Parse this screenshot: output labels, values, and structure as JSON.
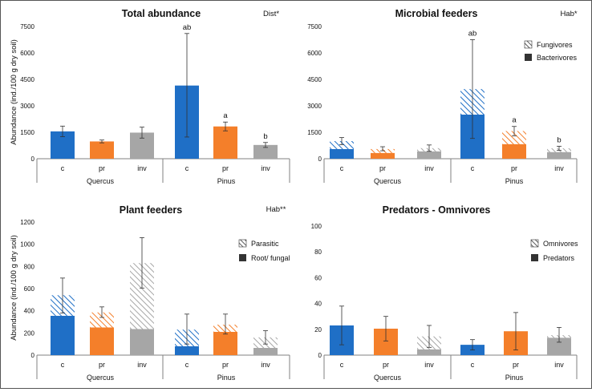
{
  "colors": {
    "quercus_c": "#1f6fc6",
    "pr": "#f47f2a",
    "inv": "#a6a6a6",
    "axis": "#808080",
    "gridline": "#d9d9d9",
    "text": "#111111"
  },
  "y_axis_label": "Abundance (ind./100 g dry soil)",
  "chart_data": [
    {
      "type": "bar",
      "title": "Total abundance",
      "significance": "Dist*",
      "ylim": [
        0,
        7500
      ],
      "yticks": [
        "0",
        "1500",
        "3000",
        "4500",
        "6000",
        "7500"
      ],
      "ytick_values": [
        0,
        1500,
        3000,
        4500,
        6000,
        7500
      ],
      "show_ylabel": true,
      "groups": [
        "Quercus",
        "Pinus"
      ],
      "categories": [
        "c",
        "pr",
        "inv",
        "c",
        "pr",
        "inv"
      ],
      "legend": [],
      "bars": [
        {
          "group": "Quercus",
          "category": "c",
          "bottom": 1550,
          "top": 0,
          "err_low": 1250,
          "err_high": 1850,
          "letter": ""
        },
        {
          "group": "Quercus",
          "category": "pr",
          "bottom": 980,
          "top": 0,
          "err_low": 900,
          "err_high": 1060,
          "letter": ""
        },
        {
          "group": "Quercus",
          "category": "inv",
          "bottom": 1480,
          "top": 0,
          "err_low": 1170,
          "err_high": 1790,
          "letter": ""
        },
        {
          "group": "Pinus",
          "category": "c",
          "bottom": 4150,
          "top": 0,
          "err_low": 1230,
          "err_high": 7100,
          "letter": "ab"
        },
        {
          "group": "Pinus",
          "category": "pr",
          "bottom": 1830,
          "top": 0,
          "err_low": 1580,
          "err_high": 2080,
          "letter": "a"
        },
        {
          "group": "Pinus",
          "category": "inv",
          "bottom": 780,
          "top": 0,
          "err_low": 640,
          "err_high": 920,
          "letter": "b"
        }
      ]
    },
    {
      "type": "bar",
      "title": "Microbial feeders",
      "significance": "Hab*",
      "ylim": [
        0,
        7500
      ],
      "yticks": [
        "0",
        "1500",
        "3000",
        "4500",
        "6000",
        "7500"
      ],
      "ytick_values": [
        0,
        1500,
        3000,
        4500,
        6000,
        7500
      ],
      "show_ylabel": false,
      "groups": [
        "Quercus",
        "Pinus"
      ],
      "categories": [
        "c",
        "pr",
        "inv",
        "c",
        "pr",
        "inv"
      ],
      "legend": [
        "Fungivores",
        "Bacterivores"
      ],
      "bars": [
        {
          "group": "Quercus",
          "category": "c",
          "bottom": 550,
          "top": 450,
          "err_low": 800,
          "err_high": 1200,
          "letter": ""
        },
        {
          "group": "Quercus",
          "category": "pr",
          "bottom": 330,
          "top": 220,
          "err_low": 450,
          "err_high": 680,
          "letter": ""
        },
        {
          "group": "Quercus",
          "category": "inv",
          "bottom": 420,
          "top": 180,
          "err_low": 420,
          "err_high": 780,
          "letter": ""
        },
        {
          "group": "Pinus",
          "category": "c",
          "bottom": 2500,
          "top": 1450,
          "err_low": 1150,
          "err_high": 6750,
          "letter": "ab"
        },
        {
          "group": "Pinus",
          "category": "pr",
          "bottom": 830,
          "top": 740,
          "err_low": 1300,
          "err_high": 1830,
          "letter": "a"
        },
        {
          "group": "Pinus",
          "category": "inv",
          "bottom": 380,
          "top": 210,
          "err_low": 470,
          "err_high": 710,
          "letter": "b"
        }
      ]
    },
    {
      "type": "bar",
      "title": "Plant feeders",
      "significance": "Hab**",
      "ylim": [
        0,
        1200
      ],
      "yticks": [
        "0",
        "200",
        "400",
        "600",
        "800",
        "1000",
        "1200"
      ],
      "ytick_values": [
        0,
        200,
        400,
        600,
        800,
        1000,
        1200
      ],
      "show_ylabel": true,
      "groups": [
        "Quercus",
        "Pinus"
      ],
      "categories": [
        "c",
        "pr",
        "inv",
        "c",
        "pr",
        "inv"
      ],
      "legend": [
        "Parasitic",
        "Root/ fungal"
      ],
      "bars": [
        {
          "group": "Quercus",
          "category": "c",
          "bottom": 355,
          "top": 185,
          "err_low": 380,
          "err_high": 695,
          "letter": ""
        },
        {
          "group": "Quercus",
          "category": "pr",
          "bottom": 250,
          "top": 135,
          "err_low": 340,
          "err_high": 435,
          "letter": ""
        },
        {
          "group": "Quercus",
          "category": "inv",
          "bottom": 235,
          "top": 595,
          "err_low": 605,
          "err_high": 1060,
          "letter": ""
        },
        {
          "group": "Pinus",
          "category": "c",
          "bottom": 80,
          "top": 150,
          "err_low": 100,
          "err_high": 370,
          "letter": ""
        },
        {
          "group": "Pinus",
          "category": "pr",
          "bottom": 210,
          "top": 65,
          "err_low": 190,
          "err_high": 370,
          "letter": ""
        },
        {
          "group": "Pinus",
          "category": "inv",
          "bottom": 65,
          "top": 95,
          "err_low": 100,
          "err_high": 220,
          "letter": ""
        }
      ]
    },
    {
      "type": "bar",
      "title": "Predators - Omnivores",
      "significance": "",
      "ylim": [
        0,
        100
      ],
      "yticks": [
        "0",
        "20",
        "40",
        "60",
        "80",
        "100"
      ],
      "ytick_values": [
        0,
        20,
        40,
        60,
        80,
        100
      ],
      "show_ylabel": false,
      "groups": [
        "Quercus",
        "Pinus"
      ],
      "categories": [
        "c",
        "pr",
        "inv",
        "c",
        "pr",
        "inv"
      ],
      "legend": [
        "Omnivores",
        "Predators"
      ],
      "bars": [
        {
          "group": "Quercus",
          "category": "c",
          "bottom": 23,
          "top": 0,
          "err_low": 8,
          "err_high": 38,
          "letter": ""
        },
        {
          "group": "Quercus",
          "category": "pr",
          "bottom": 20.5,
          "top": 0,
          "err_low": 11,
          "err_high": 30,
          "letter": ""
        },
        {
          "group": "Quercus",
          "category": "inv",
          "bottom": 4.5,
          "top": 10,
          "err_low": 6,
          "err_high": 23,
          "letter": ""
        },
        {
          "group": "Pinus",
          "category": "c",
          "bottom": 8,
          "top": 0,
          "err_low": 4,
          "err_high": 12,
          "letter": ""
        },
        {
          "group": "Pinus",
          "category": "pr",
          "bottom": 18.5,
          "top": 0,
          "err_low": 4,
          "err_high": 33,
          "letter": ""
        },
        {
          "group": "Pinus",
          "category": "inv",
          "bottom": 13.5,
          "top": 2,
          "err_low": 10,
          "err_high": 21.5,
          "letter": ""
        }
      ]
    }
  ]
}
